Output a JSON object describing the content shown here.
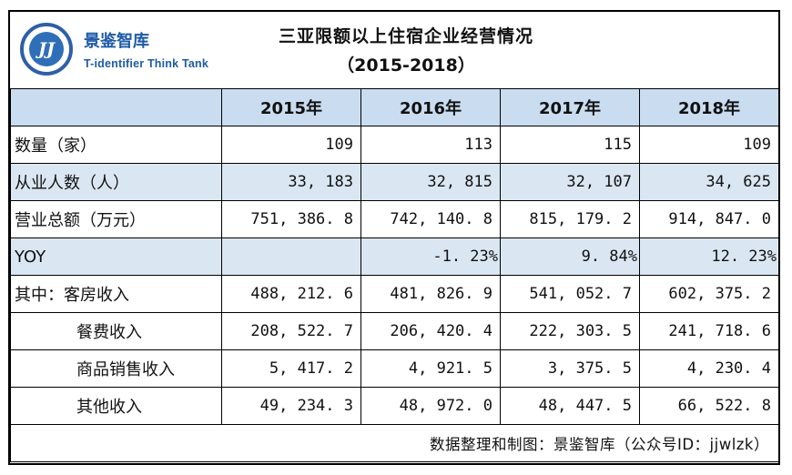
{
  "header": {
    "brand_cn": "景鉴智库",
    "brand_en": "T-identifier Think Tank",
    "logo_text": "JJ",
    "title": "三亚限额以上住宿企业经营情况",
    "subtitle": "（2015-2018）"
  },
  "table": {
    "columns": [
      "",
      "2015年",
      "2016年",
      "2017年",
      "2018年"
    ],
    "rows": [
      {
        "label": "数量（家）",
        "values": [
          "109",
          "113",
          "115",
          "109"
        ]
      },
      {
        "label": "从业人数（人）",
        "values": [
          "33, 183",
          "32, 815",
          "32, 107",
          "34, 625"
        ]
      },
      {
        "label": "营业总额（万元）",
        "values": [
          "751, 386. 8",
          "742, 140. 8",
          "815, 179. 2",
          "914, 847. 0"
        ]
      },
      {
        "label": "YOY",
        "values": [
          "",
          "-1. 23%",
          "9. 84%",
          "12. 23%"
        ]
      },
      {
        "label": "其中：客房收入",
        "values": [
          "488, 212. 6",
          "481, 826. 9",
          "541, 052. 7",
          "602, 375. 2"
        ]
      },
      {
        "label": "餐费收入",
        "values": [
          "208, 522. 7",
          "206, 420. 4",
          "222, 303. 5",
          "241, 718. 6"
        ]
      },
      {
        "label": "商品销售收入",
        "values": [
          "5, 417. 2",
          "4, 921. 5",
          "3, 375. 5",
          "4, 230. 4"
        ]
      },
      {
        "label": "其他收入",
        "values": [
          "49, 234. 3",
          "48, 972. 0",
          "48, 447. 5",
          "66, 522. 8"
        ]
      }
    ]
  },
  "footer": "数据整理和制图：景鉴智库（公众号ID：jjwlzk）",
  "colors": {
    "header_fill": "#c9dcf0",
    "alt_row_fill": "#dae7f3",
    "brand_blue": "#1e5aa8"
  }
}
